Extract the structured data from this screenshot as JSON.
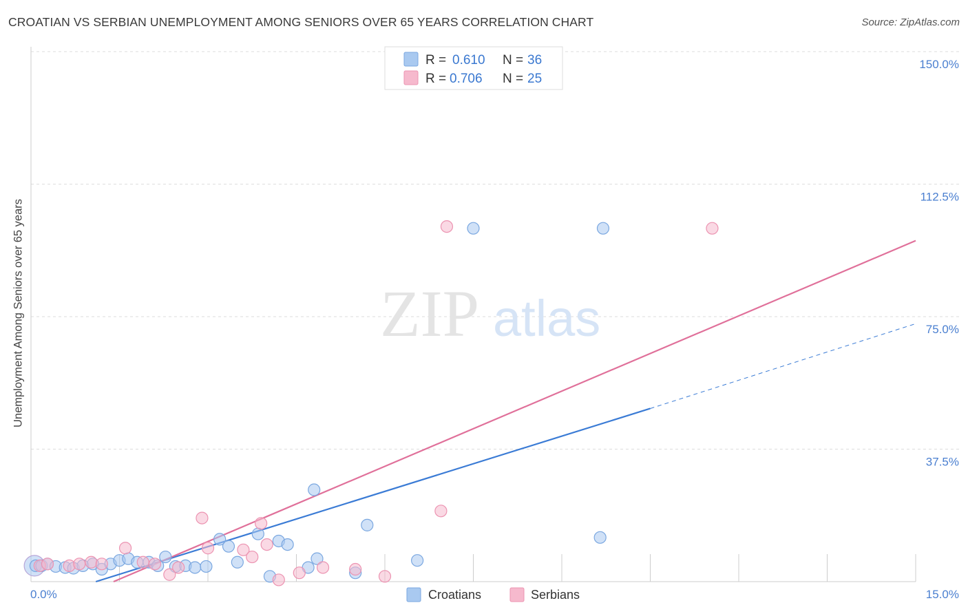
{
  "title": "CROATIAN VS SERBIAN UNEMPLOYMENT AMONG SENIORS OVER 65 YEARS CORRELATION CHART",
  "source": "Source: ZipAtlas.com",
  "watermark": {
    "zip": "ZIP",
    "atlas": "atlas"
  },
  "colors": {
    "croatians_fill": "#a9c9f0",
    "croatians_stroke": "#7aa7e0",
    "croatians_line": "#3a7bd5",
    "serbians_fill": "#f6b9cd",
    "serbians_stroke": "#ec93b1",
    "serbians_line": "#e0709a",
    "tick_text": "#4a7fd0",
    "grid": "#dddddd"
  },
  "legend": {
    "rows": [
      {
        "r_label": "R =",
        "r_value": "0.610",
        "n_label": "N =",
        "n_value": "36"
      },
      {
        "r_label": "R =",
        "r_value": "0.706",
        "n_label": "N =",
        "n_value": "25"
      }
    ]
  },
  "bottom_legend": [
    "Croatians",
    "Serbians"
  ],
  "chart_data": {
    "type": "scatter",
    "title": "CROATIAN VS SERBIAN UNEMPLOYMENT AMONG SENIORS OVER 65 YEARS CORRELATION CHART",
    "xlabel": "",
    "ylabel": "Unemployment Among Seniors over 65 years",
    "xlim": [
      0,
      15
    ],
    "ylim": [
      0,
      150
    ],
    "x_tick_labels": [
      "0.0%",
      "15.0%"
    ],
    "y_ticks": [
      37.5,
      75.0,
      112.5,
      150.0
    ],
    "y_tick_labels": [
      "37.5%",
      "75.0%",
      "112.5%",
      "150.0%"
    ],
    "grid": true,
    "legend_placement": "top-center",
    "series": [
      {
        "name": "Croatians",
        "R": 0.61,
        "N": 36,
        "points": [
          [
            0.08,
            4.5
          ],
          [
            0.18,
            4.5
          ],
          [
            0.28,
            5.0
          ],
          [
            0.42,
            4.3
          ],
          [
            0.58,
            4.0
          ],
          [
            0.72,
            3.8
          ],
          [
            0.88,
            4.5
          ],
          [
            1.05,
            5.0
          ],
          [
            1.2,
            3.5
          ],
          [
            1.35,
            5.0
          ],
          [
            1.5,
            6.0
          ],
          [
            1.65,
            6.5
          ],
          [
            1.8,
            5.5
          ],
          [
            2.0,
            5.5
          ],
          [
            2.15,
            4.5
          ],
          [
            2.28,
            7.0
          ],
          [
            2.45,
            4.3
          ],
          [
            2.62,
            4.5
          ],
          [
            2.78,
            4.0
          ],
          [
            2.97,
            4.3
          ],
          [
            3.2,
            12.0
          ],
          [
            3.35,
            10.0
          ],
          [
            3.5,
            5.5
          ],
          [
            3.85,
            13.5
          ],
          [
            4.2,
            11.5
          ],
          [
            4.35,
            10.5
          ],
          [
            4.05,
            1.5
          ],
          [
            4.7,
            4.0
          ],
          [
            4.8,
            26.0
          ],
          [
            4.85,
            6.5
          ],
          [
            5.5,
            2.5
          ],
          [
            5.7,
            16.0
          ],
          [
            6.55,
            6.0
          ],
          [
            7.5,
            100.0
          ],
          [
            9.7,
            100.0
          ],
          [
            9.65,
            12.5
          ]
        ],
        "trend": {
          "x": [
            1.1,
            10.5
          ],
          "y": [
            0.0,
            49.0
          ],
          "dashed_to": [
            15.0,
            73.0
          ]
        }
      },
      {
        "name": "Serbians",
        "R": 0.706,
        "N": 25,
        "points": [
          [
            0.15,
            4.5
          ],
          [
            0.28,
            5.0
          ],
          [
            0.65,
            4.5
          ],
          [
            0.82,
            5.0
          ],
          [
            1.02,
            5.5
          ],
          [
            1.2,
            5.0
          ],
          [
            1.6,
            9.5
          ],
          [
            1.9,
            5.5
          ],
          [
            2.1,
            5.0
          ],
          [
            2.35,
            2.0
          ],
          [
            2.5,
            4.0
          ],
          [
            2.9,
            18.0
          ],
          [
            3.0,
            9.5
          ],
          [
            3.6,
            9.0
          ],
          [
            3.75,
            7.0
          ],
          [
            3.9,
            16.5
          ],
          [
            4.0,
            10.5
          ],
          [
            4.2,
            0.5
          ],
          [
            4.55,
            2.5
          ],
          [
            4.95,
            4.0
          ],
          [
            5.5,
            3.5
          ],
          [
            6.0,
            1.5
          ],
          [
            6.95,
            20.0
          ],
          [
            7.05,
            100.5
          ],
          [
            11.55,
            100.0
          ]
        ],
        "trend": {
          "x": [
            1.4,
            15.0
          ],
          "y": [
            0.0,
            96.5
          ]
        }
      }
    ]
  }
}
